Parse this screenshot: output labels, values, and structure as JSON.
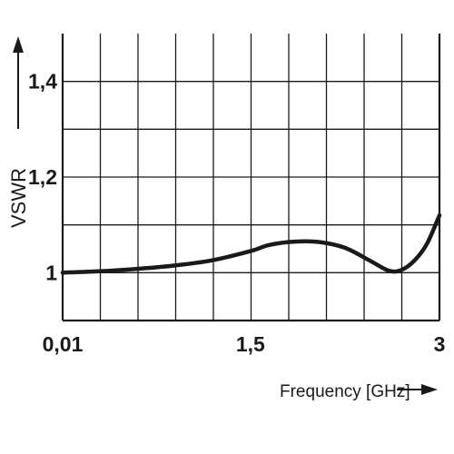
{
  "chart_data": {
    "type": "line",
    "ylabel": "VSWR",
    "xlabel": "Frequency [GHz]",
    "xlim": [
      0.01,
      3
    ],
    "ylim": [
      0.9,
      1.5
    ],
    "x_ticks": [
      {
        "value": 0.01,
        "label": "0,01"
      },
      {
        "value": 1.5,
        "label": "1,5"
      },
      {
        "value": 3,
        "label": "3"
      }
    ],
    "y_ticks": [
      {
        "value": 1.0,
        "label": "1"
      },
      {
        "value": 1.2,
        "label": "1,2"
      },
      {
        "value": 1.4,
        "label": "1,4"
      }
    ],
    "x_gridlines": 10,
    "y_gridlines": 6,
    "grid": true,
    "series": [
      {
        "color": "#1a1a1a",
        "points": [
          [
            0.01,
            1.0
          ],
          [
            0.3,
            1.003
          ],
          [
            0.6,
            1.008
          ],
          [
            0.9,
            1.015
          ],
          [
            1.2,
            1.026
          ],
          [
            1.5,
            1.045
          ],
          [
            1.65,
            1.058
          ],
          [
            1.85,
            1.065
          ],
          [
            2.05,
            1.064
          ],
          [
            2.25,
            1.052
          ],
          [
            2.45,
            1.025
          ],
          [
            2.6,
            1.004
          ],
          [
            2.7,
            1.006
          ],
          [
            2.8,
            1.025
          ],
          [
            2.9,
            1.06
          ],
          [
            3.0,
            1.12
          ]
        ]
      }
    ]
  }
}
